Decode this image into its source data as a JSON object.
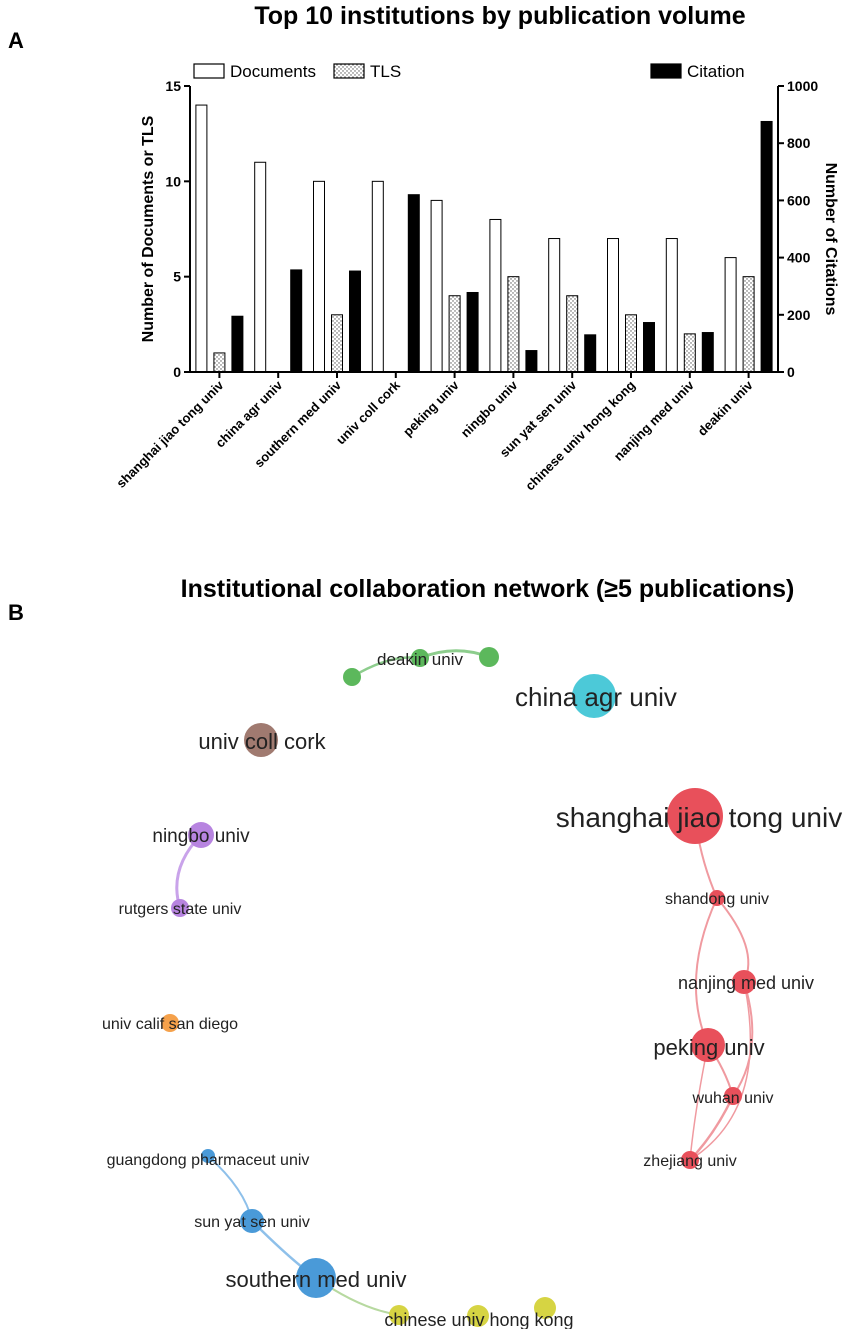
{
  "panel_a": {
    "letter": "A",
    "chart_data": {
      "type": "bar",
      "title": "Top 10 institutions by publication volume",
      "categories": [
        "shanghai jiao tong univ",
        "china agr univ",
        "southern med univ",
        "univ coll cork",
        "peking univ",
        "ningbo univ",
        "sun yat sen univ",
        "chinese univ hong kong",
        "nanjing med univ",
        "deakin univ"
      ],
      "series": [
        {
          "name": "Documents",
          "axis": "left",
          "values": [
            14,
            11,
            10,
            10,
            9,
            8,
            7,
            7,
            7,
            6
          ]
        },
        {
          "name": "TLS",
          "axis": "left",
          "values": [
            1,
            0,
            3,
            0,
            4,
            5,
            4,
            3,
            2,
            5
          ]
        },
        {
          "name": "Citation",
          "axis": "right",
          "values": [
            195,
            357,
            353,
            620,
            278,
            75,
            130,
            173,
            138,
            876
          ]
        }
      ],
      "ylabel": "Number of Documents or TLS",
      "ylabel_right": "Number of Citations",
      "ylim": [
        0,
        15
      ],
      "ylim_right": [
        0,
        1000
      ],
      "yticks": [
        0,
        5,
        10,
        15
      ],
      "yticks_right": [
        0,
        200,
        400,
        600,
        800,
        1000
      ],
      "legend_placement": "top",
      "grid": false
    }
  },
  "panel_b": {
    "letter": "B",
    "title": "Institutional collaboration network (≥5 publications)",
    "clusters": [
      {
        "color": "#5cb85c",
        "nodes": [
          "deakin univ"
        ]
      },
      {
        "color": "#4cc9d8",
        "nodes": [
          "china agr univ"
        ]
      },
      {
        "color": "#a07a70",
        "nodes": [
          "univ coll cork"
        ]
      },
      {
        "color": "#b784e0",
        "nodes": [
          "ningbo univ",
          "rutgers state univ"
        ]
      },
      {
        "color": "#f5a14b",
        "nodes": [
          "univ calif san diego"
        ]
      },
      {
        "color": "#e8505b",
        "nodes": [
          "shanghai jiao tong univ",
          "shandong univ",
          "nanjing med univ",
          "peking univ",
          "wuhan univ",
          "zhejiang univ"
        ]
      },
      {
        "color": "#4a9ad8",
        "nodes": [
          "guangdong pharmaceut univ",
          "sun yat sen univ",
          "southern med univ"
        ]
      },
      {
        "color": "#d6d443",
        "nodes": [
          "chinese univ hong kong"
        ]
      }
    ]
  }
}
